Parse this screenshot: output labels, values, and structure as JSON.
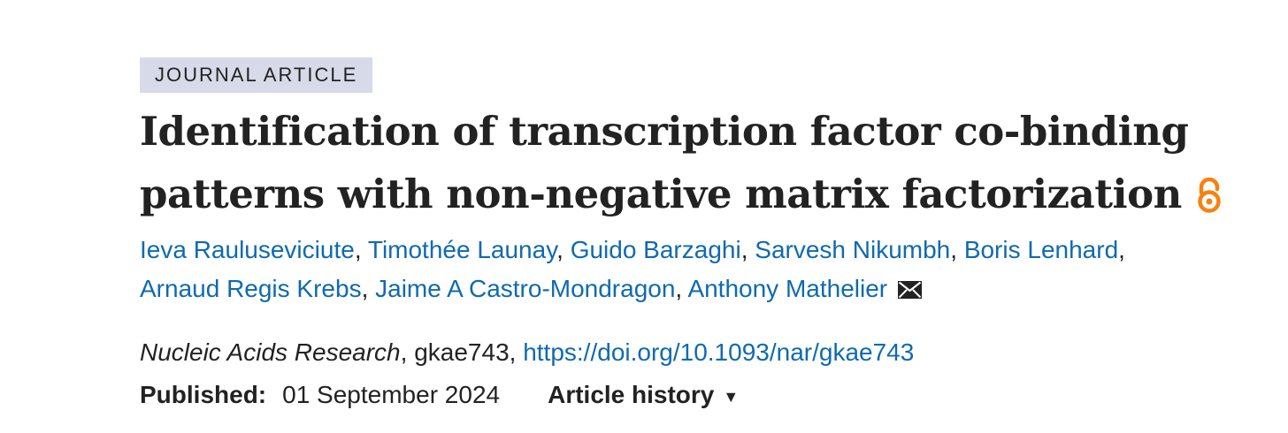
{
  "article": {
    "type_label": "JOURNAL ARTICLE",
    "title": "Identification of transcription factor co-binding patterns with non-negative matrix factorization",
    "open_access_icon": "open-access-lock-icon",
    "authors": [
      "Ieva Rauluseviciute",
      "Timothée Launay",
      "Guido Barzaghi",
      "Sarvesh Nikumbh",
      "Boris Lenhard",
      "Arnaud Regis Krebs",
      "Jaime A Castro-Mondragon",
      "Anthony Mathelier"
    ],
    "author_separator": ", ",
    "contact_icon": "envelope-icon",
    "journal": "Nucleic Acids Research",
    "article_id": "gkae743",
    "doi": "https://doi.org/10.1093/nar/gkae743",
    "published_label": "Published:",
    "published_date": "01 September 2024",
    "history_label": "Article history",
    "history_caret": "▼"
  },
  "colors": {
    "badge_background": "#d6dae9",
    "link": "#0f6aaf",
    "open_access": "#f68212",
    "text": "#222222"
  }
}
